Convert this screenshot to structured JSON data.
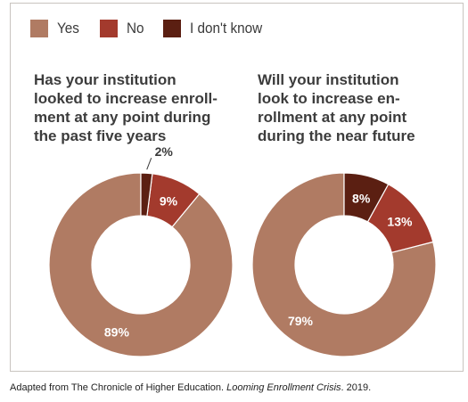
{
  "legend": [
    {
      "label": "Yes",
      "color": "#b07b63"
    },
    {
      "label": "No",
      "color": "#a33a2d"
    },
    {
      "label": "I don't know",
      "color": "#5b1f12"
    }
  ],
  "chart_data": [
    {
      "type": "pie",
      "title": "Has your institution looked to increase enroll-ment at any point during the past five years",
      "title_lines": [
        "Has your institution",
        "looked to increase enroll-",
        "ment at any point during",
        "the past five years"
      ],
      "categories": [
        "Yes",
        "No",
        "I don't know"
      ],
      "values": [
        89,
        9,
        2
      ],
      "labels": [
        "89%",
        "9%",
        "2%"
      ],
      "colors": [
        "#b07b63",
        "#a33a2d",
        "#5b1f12"
      ],
      "style": "donut"
    },
    {
      "type": "pie",
      "title": "Will your institution look to increase en-rollment at any point during the near future",
      "title_lines": [
        "Will your institution",
        "look to increase en-",
        "rollment at any point",
        "during the near future"
      ],
      "categories": [
        "Yes",
        "No",
        "I don't know"
      ],
      "values": [
        79,
        13,
        8
      ],
      "labels": [
        "79%",
        "13%",
        "8%"
      ],
      "colors": [
        "#b07b63",
        "#a33a2d",
        "#5b1f12"
      ],
      "style": "donut"
    }
  ],
  "caption": {
    "prefix": "Adapted from The Chronicle of Higher Education. ",
    "italic": "Looming Enrollment Crisis",
    "suffix": ". 2019."
  }
}
